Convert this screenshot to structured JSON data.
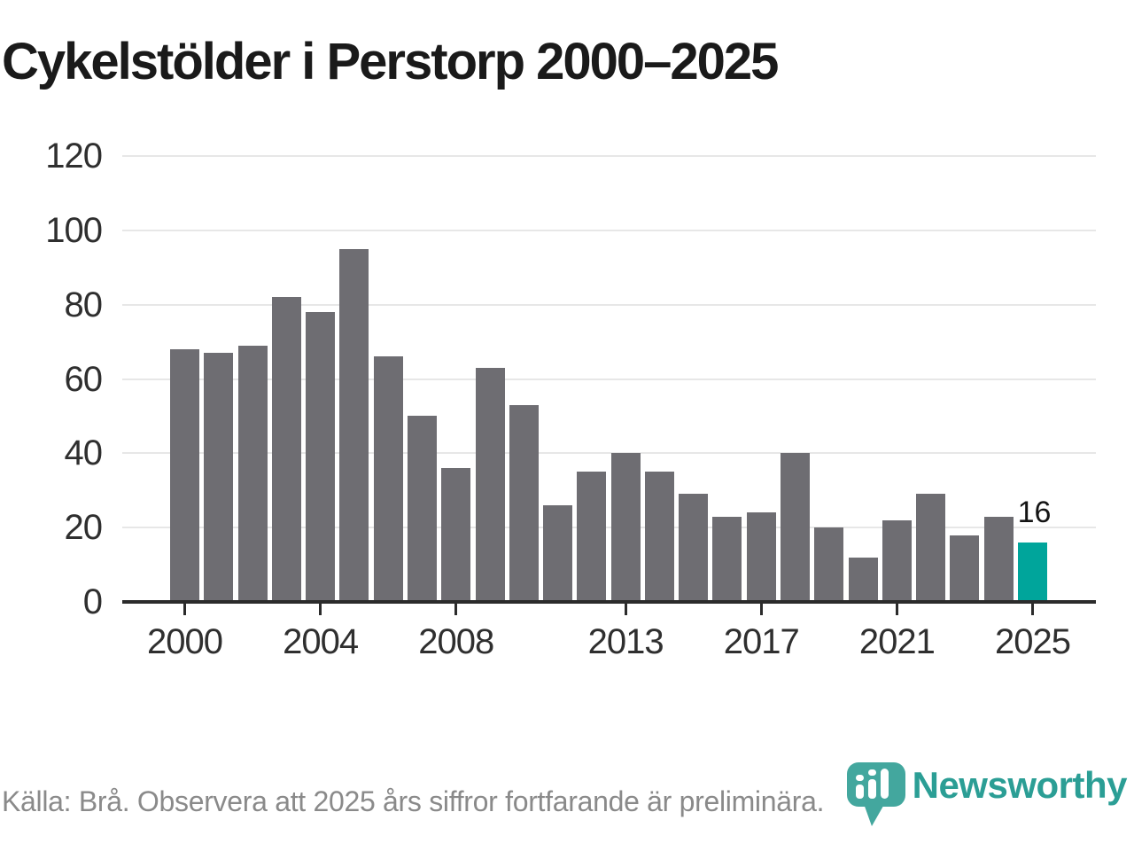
{
  "page": {
    "title": "Cykelstölder i Perstorp 2000–2025"
  },
  "chart_data": {
    "type": "bar",
    "title": "Cykelstölder i Perstorp 2000–2025",
    "categories": [
      "2000",
      "2001",
      "2002",
      "2003",
      "2004",
      "2005",
      "2006",
      "2007",
      "2008",
      "2009",
      "2010",
      "2011",
      "2012",
      "2013",
      "2014",
      "2015",
      "2016",
      "2017",
      "2018",
      "2019",
      "2020",
      "2021",
      "2022",
      "2023",
      "2024",
      "2025"
    ],
    "values": [
      68,
      67,
      69,
      82,
      78,
      95,
      66,
      50,
      36,
      63,
      53,
      26,
      35,
      40,
      35,
      29,
      23,
      24,
      40,
      20,
      12,
      22,
      29,
      18,
      23,
      16
    ],
    "highlight": {
      "category": "2025",
      "value": 16,
      "label": "16"
    },
    "x_tick_labels": [
      "2000",
      "2004",
      "2008",
      "2013",
      "2017",
      "2021",
      "2025"
    ],
    "y_ticks": [
      0,
      20,
      40,
      60,
      80,
      100,
      120
    ],
    "ylim": [
      0,
      120
    ],
    "xlabel": "",
    "ylabel": "",
    "grid": "horizontal",
    "legend_position": "none"
  },
  "footer": {
    "source_note": "Källa: Brå. Observera att 2025 års siffror fortfarande är preliminära.",
    "brand": {
      "name": "Newsworthy",
      "logo_icon": "newsworthy-pin-barchart-icon"
    }
  },
  "colors": {
    "background": "#ffffff",
    "title_text": "#1a1a1a",
    "bar_default": "#6e6d72",
    "bar_highlight": "#00a59b",
    "gridline": "#e7e7e7",
    "axis_line": "#2b2b2b",
    "axis_label": "#2f2f2f",
    "footer_text": "#8a8a8a",
    "brand_teal": "#2b9e95",
    "brand_mark_teal": "#43a79e"
  }
}
